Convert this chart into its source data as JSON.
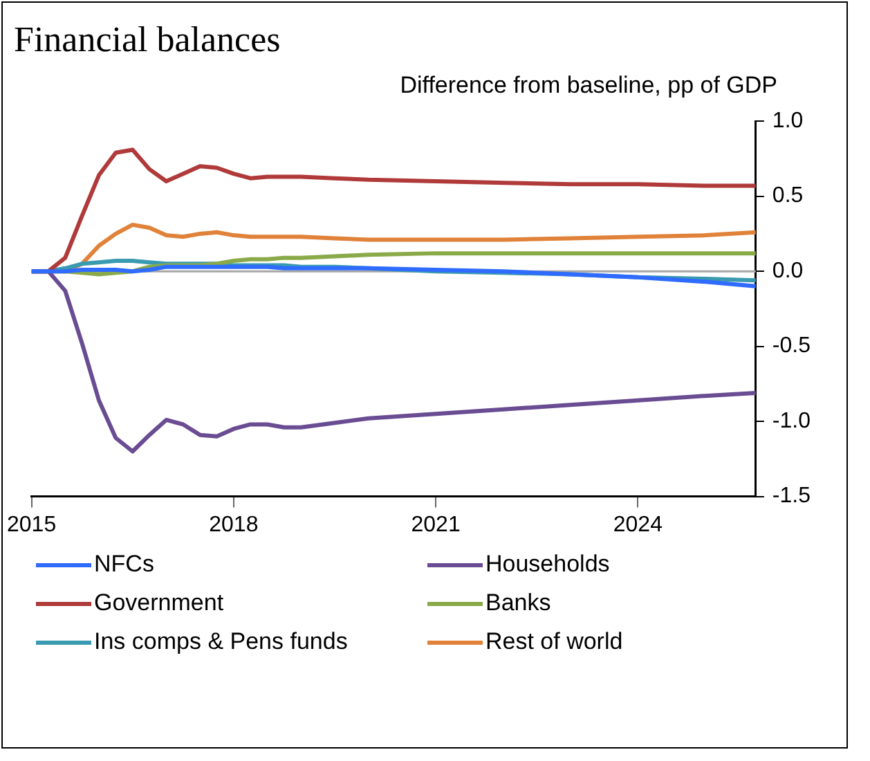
{
  "chart_data": {
    "type": "line",
    "title": "Financial balances",
    "ylabel": "Difference from baseline, pp of GDP",
    "x": [
      2015,
      2015.25,
      2015.5,
      2015.75,
      2016,
      2016.25,
      2016.5,
      2016.75,
      2017,
      2017.25,
      2017.5,
      2017.75,
      2018,
      2018.25,
      2018.5,
      2018.75,
      2019,
      2019.5,
      2020,
      2021,
      2022,
      2023,
      2024,
      2025,
      2025.75
    ],
    "xlim": [
      2015,
      2025.75
    ],
    "xticks": [
      2015,
      2018,
      2021,
      2024
    ],
    "ylim": [
      -1.5,
      1.0
    ],
    "yticks": [
      {
        "value": -1.5,
        "label": "-1.5"
      },
      {
        "value": -1,
        "label": "-1.0"
      },
      {
        "value": -0.5,
        "label": "-0.5"
      },
      {
        "value": 0,
        "label": "0.0"
      },
      {
        "value": 0.5,
        "label": "0.5"
      },
      {
        "value": 1,
        "label": "1.0"
      }
    ],
    "grid": false,
    "legend": "bottom",
    "marker": "none",
    "line_style": "solid",
    "ref_lines": [
      {
        "axis": "y",
        "value": 0,
        "color": "#a6a6a6"
      }
    ],
    "series": [
      {
        "name": "NFCs",
        "color": "#2f6bff",
        "values": [
          0,
          0,
          0,
          0.01,
          0.01,
          0.01,
          0,
          0.01,
          0.03,
          0.03,
          0.03,
          0.03,
          0.03,
          0.03,
          0.03,
          0.02,
          0.02,
          0.02,
          0.02,
          0.01,
          0,
          -0.02,
          -0.04,
          -0.07,
          -0.1
        ]
      },
      {
        "name": "Households",
        "color": "#6a4c93",
        "values": [
          0,
          0,
          -0.13,
          -0.48,
          -0.86,
          -1.11,
          -1.2,
          -1.09,
          -0.99,
          -1.02,
          -1.09,
          -1.1,
          -1.05,
          -1.02,
          -1.02,
          -1.04,
          -1.04,
          -1.01,
          -0.98,
          -0.95,
          -0.92,
          -0.89,
          -0.86,
          -0.83,
          -0.81
        ]
      },
      {
        "name": "Government",
        "color": "#b03a3a",
        "values": [
          0,
          0,
          0.09,
          0.37,
          0.64,
          0.79,
          0.81,
          0.68,
          0.6,
          0.65,
          0.7,
          0.69,
          0.65,
          0.62,
          0.63,
          0.63,
          0.63,
          0.62,
          0.61,
          0.6,
          0.59,
          0.58,
          0.58,
          0.57,
          0.57
        ]
      },
      {
        "name": "Banks",
        "color": "#8aaa4a",
        "values": [
          0,
          0,
          0,
          -0.01,
          -0.02,
          -0.01,
          0,
          0.03,
          0.04,
          0.04,
          0.04,
          0.05,
          0.07,
          0.08,
          0.08,
          0.09,
          0.09,
          0.1,
          0.11,
          0.12,
          0.12,
          0.12,
          0.12,
          0.12,
          0.12
        ]
      },
      {
        "name": "Ins comps & Pens funds",
        "color": "#3a9ab0",
        "values": [
          0,
          0,
          0.02,
          0.05,
          0.06,
          0.07,
          0.07,
          0.06,
          0.05,
          0.05,
          0.05,
          0.05,
          0.04,
          0.04,
          0.04,
          0.04,
          0.03,
          0.03,
          0.02,
          0,
          -0.01,
          -0.02,
          -0.04,
          -0.05,
          -0.06
        ]
      },
      {
        "name": "Rest of world",
        "color": "#e0823a",
        "values": [
          0,
          0,
          0,
          0.05,
          0.17,
          0.25,
          0.31,
          0.29,
          0.24,
          0.23,
          0.25,
          0.26,
          0.24,
          0.23,
          0.23,
          0.23,
          0.23,
          0.22,
          0.21,
          0.21,
          0.21,
          0.22,
          0.23,
          0.24,
          0.26
        ]
      }
    ]
  }
}
